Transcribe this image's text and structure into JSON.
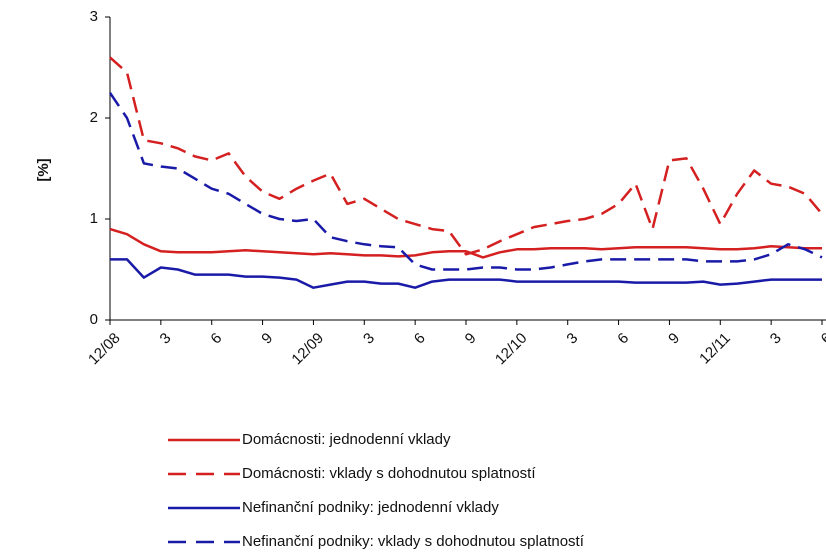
{
  "chart_data": {
    "type": "line",
    "y_label": "[%]",
    "categories": [
      "12/08",
      null,
      null,
      "3",
      null,
      null,
      "6",
      null,
      null,
      "9",
      null,
      null,
      "12/09",
      null,
      null,
      "3",
      null,
      null,
      "6",
      null,
      null,
      "9",
      null,
      null,
      "12/10",
      null,
      null,
      "3",
      null,
      null,
      "6",
      null,
      null,
      "9",
      null,
      null,
      "12/11",
      null,
      null,
      "3",
      null,
      null,
      "6"
    ],
    "ylim": [
      0,
      3
    ],
    "yticks": [
      0,
      1,
      2,
      3
    ],
    "series": [
      {
        "name": "Domácnosti: jednodenní vklady",
        "color": "#d42020",
        "style": "solid",
        "values": [
          0.9,
          0.85,
          0.75,
          0.68,
          0.67,
          0.67,
          0.67,
          0.68,
          0.69,
          0.68,
          0.67,
          0.66,
          0.65,
          0.66,
          0.65,
          0.64,
          0.64,
          0.63,
          0.64,
          0.67,
          0.68,
          0.68,
          0.62,
          0.67,
          0.7,
          0.7,
          0.71,
          0.71,
          0.71,
          0.7,
          0.71,
          0.72,
          0.72,
          0.72,
          0.72,
          0.71,
          0.7,
          0.7,
          0.71,
          0.73,
          0.72,
          0.71,
          0.71
        ]
      },
      {
        "name": "Domácnosti: vklady s dohodnutou splatností",
        "color": "#d42020",
        "style": "dashed",
        "values": [
          2.6,
          2.45,
          1.78,
          1.75,
          1.7,
          1.62,
          1.58,
          1.65,
          1.42,
          1.27,
          1.2,
          1.3,
          1.38,
          1.45,
          1.15,
          1.2,
          1.1,
          1.0,
          0.95,
          0.9,
          0.88,
          0.65,
          0.7,
          0.78,
          0.85,
          0.92,
          0.95,
          0.98,
          1.0,
          1.05,
          1.15,
          1.35,
          0.9,
          1.58,
          1.6,
          1.3,
          0.95,
          1.25,
          1.48,
          1.35,
          1.32,
          1.25,
          1.05
        ]
      },
      {
        "name": "Nefinanční podniky: jednodenní vklady",
        "color": "#1a1aa8",
        "style": "solid",
        "values": [
          0.6,
          0.6,
          0.42,
          0.52,
          0.5,
          0.45,
          0.45,
          0.45,
          0.43,
          0.43,
          0.42,
          0.4,
          0.32,
          0.35,
          0.38,
          0.38,
          0.36,
          0.36,
          0.32,
          0.38,
          0.4,
          0.4,
          0.4,
          0.4,
          0.38,
          0.38,
          0.38,
          0.38,
          0.38,
          0.38,
          0.38,
          0.37,
          0.37,
          0.37,
          0.37,
          0.38,
          0.35,
          0.36,
          0.38,
          0.4,
          0.4,
          0.4,
          0.4
        ]
      },
      {
        "name": "Nefinanční podniky: vklady s dohodnutou splatností",
        "color": "#1a1aa8",
        "style": "dashed",
        "values": [
          2.25,
          2.0,
          1.55,
          1.52,
          1.5,
          1.4,
          1.3,
          1.25,
          1.15,
          1.05,
          1.0,
          0.98,
          1.0,
          0.82,
          0.78,
          0.75,
          0.73,
          0.72,
          0.55,
          0.5,
          0.5,
          0.5,
          0.52,
          0.52,
          0.5,
          0.5,
          0.52,
          0.55,
          0.58,
          0.6,
          0.6,
          0.6,
          0.6,
          0.6,
          0.6,
          0.58,
          0.58,
          0.58,
          0.6,
          0.65,
          0.75,
          0.7,
          0.62
        ]
      }
    ]
  }
}
